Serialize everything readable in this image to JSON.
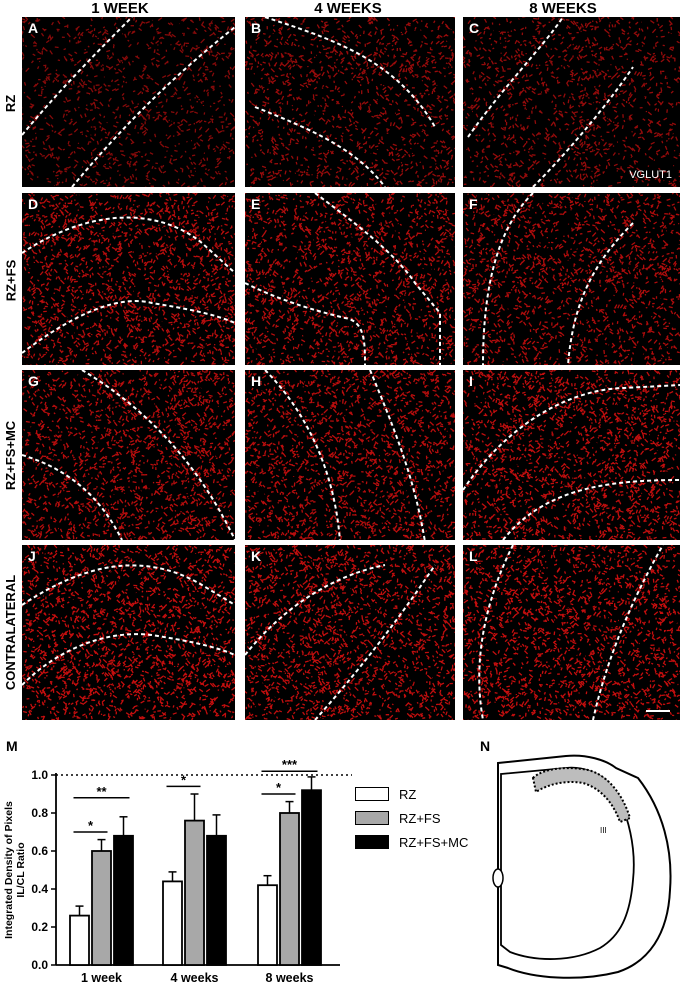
{
  "columns": [
    "1 WEEK",
    "4 WEEKS",
    "8 WEEKS"
  ],
  "rows": [
    "RZ",
    "RZ+FS",
    "RZ+FS+MC",
    "CONTRALATERAL"
  ],
  "panels": [
    {
      "letter": "A",
      "density": 0.3
    },
    {
      "letter": "B",
      "density": 0.45
    },
    {
      "letter": "C",
      "density": 0.42
    },
    {
      "letter": "D",
      "density": 0.75
    },
    {
      "letter": "E",
      "density": 0.72
    },
    {
      "letter": "F",
      "density": 0.65
    },
    {
      "letter": "G",
      "density": 0.72
    },
    {
      "letter": "H",
      "density": 0.75
    },
    {
      "letter": "I",
      "density": 0.82
    },
    {
      "letter": "J",
      "density": 0.85
    },
    {
      "letter": "K",
      "density": 0.82
    },
    {
      "letter": "L",
      "density": 0.85
    }
  ],
  "marker": "VGLUT1",
  "panel_M_letter": "M",
  "panel_N_letter": "N",
  "panel_N_marker": "III",
  "colors": {
    "stain": "#e01010",
    "bg": "#000000",
    "rz": "#ffffff",
    "rzfs": "#a8a8a8",
    "rzfsmc": "#000000"
  },
  "chart_data": {
    "type": "bar",
    "ylabel": "Integrated Density of Pixels IL/CL Ratio",
    "ylabel_lines": [
      "Integrated Density of Pixels",
      "IL/CL Ratio"
    ],
    "categories": [
      "1 week",
      "4 weeks",
      "8 weeks"
    ],
    "ylim": [
      0.0,
      1.0
    ],
    "yticks": [
      "0.0",
      "0.2",
      "0.4",
      "0.6",
      "0.8",
      "1.0"
    ],
    "reference_line": 1.0,
    "series": [
      {
        "name": "RZ",
        "values": [
          0.26,
          0.44,
          0.42
        ],
        "errors": [
          0.05,
          0.05,
          0.05
        ]
      },
      {
        "name": "RZ+FS",
        "values": [
          0.6,
          0.76,
          0.8
        ],
        "errors": [
          0.06,
          0.14,
          0.06
        ]
      },
      {
        "name": "RZ+FS+MC",
        "values": [
          0.68,
          0.68,
          0.92
        ],
        "errors": [
          0.1,
          0.11,
          0.07
        ]
      }
    ],
    "significance": [
      {
        "category": 0,
        "from": 0,
        "to": 1,
        "label": "*"
      },
      {
        "category": 0,
        "from": 0,
        "to": 2,
        "label": "**"
      },
      {
        "category": 1,
        "from": 0,
        "to": 1,
        "label": "*"
      },
      {
        "category": 2,
        "from": 0,
        "to": 1,
        "label": "*"
      },
      {
        "category": 2,
        "from": 0,
        "to": 2,
        "label": "***"
      }
    ]
  }
}
